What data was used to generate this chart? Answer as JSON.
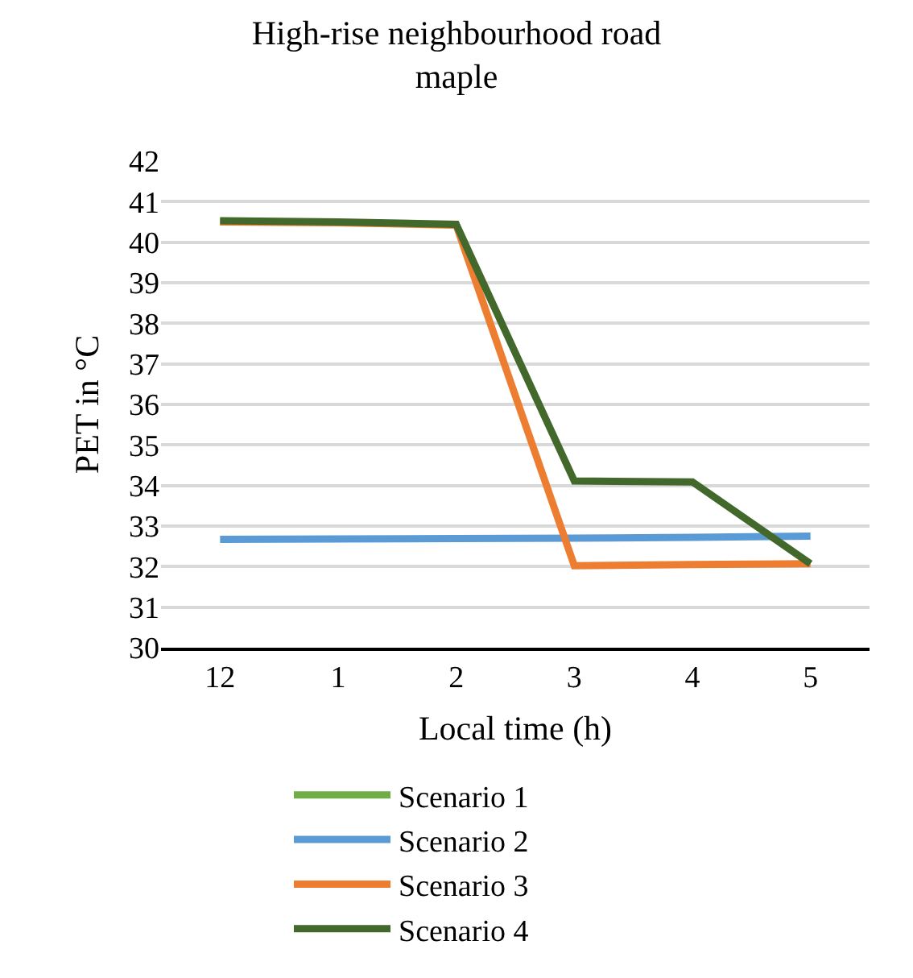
{
  "chart_data": {
    "type": "line",
    "title": "High-rise neighbourhood road\nmaple",
    "xlabel": "Local time (h)",
    "ylabel": "PET in °C",
    "categories": [
      "12",
      "1",
      "2",
      "3",
      "4",
      "5"
    ],
    "series": [
      {
        "name": "Scenario 1",
        "color": "#70ad47",
        "values": [
          null,
          null,
          null,
          null,
          null,
          null
        ]
      },
      {
        "name": "Scenario 2",
        "color": "#5b9bd5",
        "values": [
          32.67,
          32.68,
          32.69,
          32.7,
          32.72,
          32.75
        ]
      },
      {
        "name": "Scenario 3",
        "color": "#ed7d31",
        "values": [
          40.5,
          40.48,
          40.42,
          32.02,
          32.05,
          32.07
        ]
      },
      {
        "name": "Scenario 4",
        "color": "#43682b",
        "values": [
          40.53,
          40.5,
          40.44,
          34.11,
          34.09,
          32.07
        ]
      }
    ],
    "ylim": [
      30,
      42
    ],
    "yticks": [
      30,
      31,
      32,
      33,
      34,
      35,
      36,
      37,
      38,
      39,
      40,
      41,
      42
    ],
    "grid": "y",
    "legend": "bottom",
    "marker": "none",
    "line_style": "solid"
  }
}
